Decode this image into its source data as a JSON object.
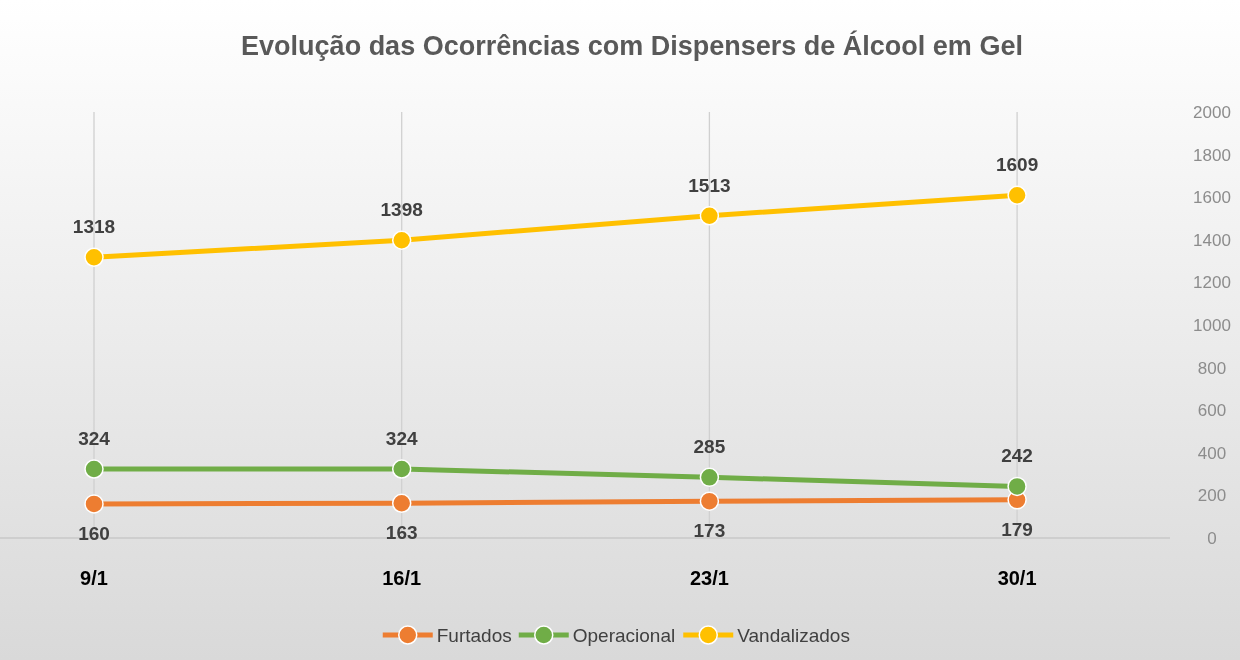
{
  "chart_data": {
    "type": "line",
    "title": "Evolução das Ocorrências com Dispensers de Álcool em Gel",
    "categories": [
      "9/1",
      "16/1",
      "23/1",
      "30/1"
    ],
    "series": [
      {
        "name": "Furtados",
        "color": "#ed7d31",
        "values": [
          160,
          163,
          173,
          179
        ]
      },
      {
        "name": "Operacional",
        "color": "#70ad47",
        "values": [
          324,
          324,
          285,
          242
        ]
      },
      {
        "name": "Vandalizados",
        "color": "#ffc000",
        "values": [
          1318,
          1398,
          1513,
          1609
        ]
      }
    ],
    "ylim": [
      0,
      2000
    ],
    "yticks": [
      0,
      200,
      400,
      600,
      800,
      1000,
      1200,
      1400,
      1600,
      1800,
      2000
    ],
    "grid": "x",
    "legend": "bottom",
    "marker": "circle",
    "line_style": "solid",
    "data_labels": true
  }
}
